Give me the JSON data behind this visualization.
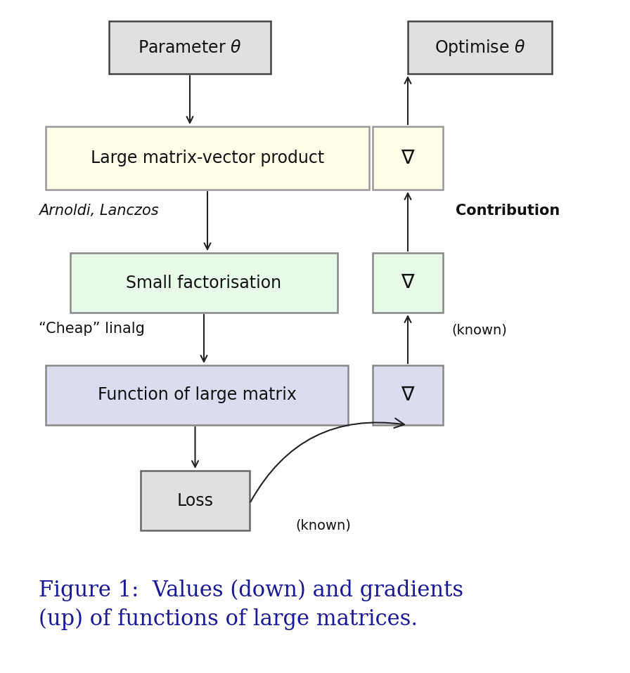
{
  "bg_color": "#ffffff",
  "box_param_color": "#e0e0e0",
  "box_param_border": "#444444",
  "box_large_mvp_color": "#fdfde8",
  "box_large_mvp_border": "#999999",
  "box_small_fact_color": "#e8fae8",
  "box_small_fact_border": "#888888",
  "box_func_large_color": "#dcdcf0",
  "box_func_large_border": "#888888",
  "box_loss_color": "#e0e0e0",
  "box_loss_border": "#666666",
  "box_grad_yellow_color": "#fdfde8",
  "box_grad_yellow_border": "#999999",
  "box_grad_green_color": "#e8fae8",
  "box_grad_green_border": "#888888",
  "box_grad_blue_color": "#dcdcf0",
  "box_grad_blue_border": "#888888",
  "arrow_color": "#222222",
  "text_color": "#111111",
  "caption_color": "#1a1a99",
  "caption_text": "Figure 1:  Values (down) and gradients\n(up) of functions of large matrices.",
  "label_param": "Parameter $\\theta$",
  "label_optimise": "Optimise $\\theta$",
  "label_large_mvp": "Large matrix-vector product",
  "label_small_fact": "Small factorisation",
  "label_func_large": "Function of large matrix",
  "label_loss": "Loss",
  "label_arnoldi": "Arnoldi, Lanczos",
  "label_cheap": "“Cheap” linalg",
  "label_contribution": "Contribution",
  "label_known1": "(known)",
  "label_known2": "(known)",
  "nabla": "$\\nabla$"
}
